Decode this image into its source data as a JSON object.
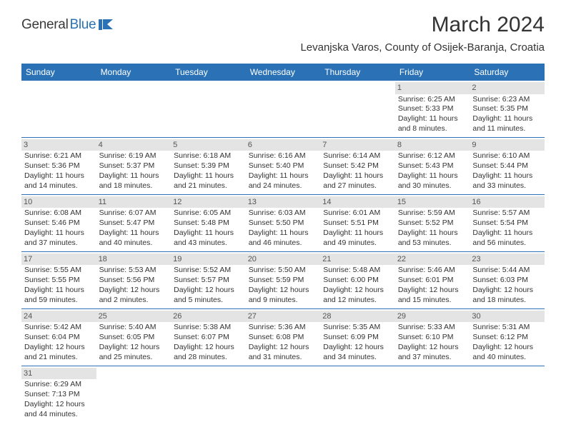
{
  "brand": {
    "part1": "General",
    "part2": "Blue"
  },
  "title": "March 2024",
  "location": "Levanjska Varos, County of Osijek-Baranja, Croatia",
  "colors": {
    "brand_blue": "#2a72b5",
    "header_bg": "#2a72b5",
    "daynum_bg": "#e4e4e4"
  },
  "dayHeaders": [
    "Sunday",
    "Monday",
    "Tuesday",
    "Wednesday",
    "Thursday",
    "Friday",
    "Saturday"
  ],
  "weeks": [
    [
      null,
      null,
      null,
      null,
      null,
      {
        "n": "1",
        "sr": "Sunrise: 6:25 AM",
        "ss": "Sunset: 5:33 PM",
        "d1": "Daylight: 11 hours",
        "d2": "and 8 minutes."
      },
      {
        "n": "2",
        "sr": "Sunrise: 6:23 AM",
        "ss": "Sunset: 5:35 PM",
        "d1": "Daylight: 11 hours",
        "d2": "and 11 minutes."
      }
    ],
    [
      {
        "n": "3",
        "sr": "Sunrise: 6:21 AM",
        "ss": "Sunset: 5:36 PM",
        "d1": "Daylight: 11 hours",
        "d2": "and 14 minutes."
      },
      {
        "n": "4",
        "sr": "Sunrise: 6:19 AM",
        "ss": "Sunset: 5:37 PM",
        "d1": "Daylight: 11 hours",
        "d2": "and 18 minutes."
      },
      {
        "n": "5",
        "sr": "Sunrise: 6:18 AM",
        "ss": "Sunset: 5:39 PM",
        "d1": "Daylight: 11 hours",
        "d2": "and 21 minutes."
      },
      {
        "n": "6",
        "sr": "Sunrise: 6:16 AM",
        "ss": "Sunset: 5:40 PM",
        "d1": "Daylight: 11 hours",
        "d2": "and 24 minutes."
      },
      {
        "n": "7",
        "sr": "Sunrise: 6:14 AM",
        "ss": "Sunset: 5:42 PM",
        "d1": "Daylight: 11 hours",
        "d2": "and 27 minutes."
      },
      {
        "n": "8",
        "sr": "Sunrise: 6:12 AM",
        "ss": "Sunset: 5:43 PM",
        "d1": "Daylight: 11 hours",
        "d2": "and 30 minutes."
      },
      {
        "n": "9",
        "sr": "Sunrise: 6:10 AM",
        "ss": "Sunset: 5:44 PM",
        "d1": "Daylight: 11 hours",
        "d2": "and 33 minutes."
      }
    ],
    [
      {
        "n": "10",
        "sr": "Sunrise: 6:08 AM",
        "ss": "Sunset: 5:46 PM",
        "d1": "Daylight: 11 hours",
        "d2": "and 37 minutes."
      },
      {
        "n": "11",
        "sr": "Sunrise: 6:07 AM",
        "ss": "Sunset: 5:47 PM",
        "d1": "Daylight: 11 hours",
        "d2": "and 40 minutes."
      },
      {
        "n": "12",
        "sr": "Sunrise: 6:05 AM",
        "ss": "Sunset: 5:48 PM",
        "d1": "Daylight: 11 hours",
        "d2": "and 43 minutes."
      },
      {
        "n": "13",
        "sr": "Sunrise: 6:03 AM",
        "ss": "Sunset: 5:50 PM",
        "d1": "Daylight: 11 hours",
        "d2": "and 46 minutes."
      },
      {
        "n": "14",
        "sr": "Sunrise: 6:01 AM",
        "ss": "Sunset: 5:51 PM",
        "d1": "Daylight: 11 hours",
        "d2": "and 49 minutes."
      },
      {
        "n": "15",
        "sr": "Sunrise: 5:59 AM",
        "ss": "Sunset: 5:52 PM",
        "d1": "Daylight: 11 hours",
        "d2": "and 53 minutes."
      },
      {
        "n": "16",
        "sr": "Sunrise: 5:57 AM",
        "ss": "Sunset: 5:54 PM",
        "d1": "Daylight: 11 hours",
        "d2": "and 56 minutes."
      }
    ],
    [
      {
        "n": "17",
        "sr": "Sunrise: 5:55 AM",
        "ss": "Sunset: 5:55 PM",
        "d1": "Daylight: 11 hours",
        "d2": "and 59 minutes."
      },
      {
        "n": "18",
        "sr": "Sunrise: 5:53 AM",
        "ss": "Sunset: 5:56 PM",
        "d1": "Daylight: 12 hours",
        "d2": "and 2 minutes."
      },
      {
        "n": "19",
        "sr": "Sunrise: 5:52 AM",
        "ss": "Sunset: 5:57 PM",
        "d1": "Daylight: 12 hours",
        "d2": "and 5 minutes."
      },
      {
        "n": "20",
        "sr": "Sunrise: 5:50 AM",
        "ss": "Sunset: 5:59 PM",
        "d1": "Daylight: 12 hours",
        "d2": "and 9 minutes."
      },
      {
        "n": "21",
        "sr": "Sunrise: 5:48 AM",
        "ss": "Sunset: 6:00 PM",
        "d1": "Daylight: 12 hours",
        "d2": "and 12 minutes."
      },
      {
        "n": "22",
        "sr": "Sunrise: 5:46 AM",
        "ss": "Sunset: 6:01 PM",
        "d1": "Daylight: 12 hours",
        "d2": "and 15 minutes."
      },
      {
        "n": "23",
        "sr": "Sunrise: 5:44 AM",
        "ss": "Sunset: 6:03 PM",
        "d1": "Daylight: 12 hours",
        "d2": "and 18 minutes."
      }
    ],
    [
      {
        "n": "24",
        "sr": "Sunrise: 5:42 AM",
        "ss": "Sunset: 6:04 PM",
        "d1": "Daylight: 12 hours",
        "d2": "and 21 minutes."
      },
      {
        "n": "25",
        "sr": "Sunrise: 5:40 AM",
        "ss": "Sunset: 6:05 PM",
        "d1": "Daylight: 12 hours",
        "d2": "and 25 minutes."
      },
      {
        "n": "26",
        "sr": "Sunrise: 5:38 AM",
        "ss": "Sunset: 6:07 PM",
        "d1": "Daylight: 12 hours",
        "d2": "and 28 minutes."
      },
      {
        "n": "27",
        "sr": "Sunrise: 5:36 AM",
        "ss": "Sunset: 6:08 PM",
        "d1": "Daylight: 12 hours",
        "d2": "and 31 minutes."
      },
      {
        "n": "28",
        "sr": "Sunrise: 5:35 AM",
        "ss": "Sunset: 6:09 PM",
        "d1": "Daylight: 12 hours",
        "d2": "and 34 minutes."
      },
      {
        "n": "29",
        "sr": "Sunrise: 5:33 AM",
        "ss": "Sunset: 6:10 PM",
        "d1": "Daylight: 12 hours",
        "d2": "and 37 minutes."
      },
      {
        "n": "30",
        "sr": "Sunrise: 5:31 AM",
        "ss": "Sunset: 6:12 PM",
        "d1": "Daylight: 12 hours",
        "d2": "and 40 minutes."
      }
    ],
    [
      {
        "n": "31",
        "sr": "Sunrise: 6:29 AM",
        "ss": "Sunset: 7:13 PM",
        "d1": "Daylight: 12 hours",
        "d2": "and 44 minutes."
      },
      null,
      null,
      null,
      null,
      null,
      null
    ]
  ]
}
